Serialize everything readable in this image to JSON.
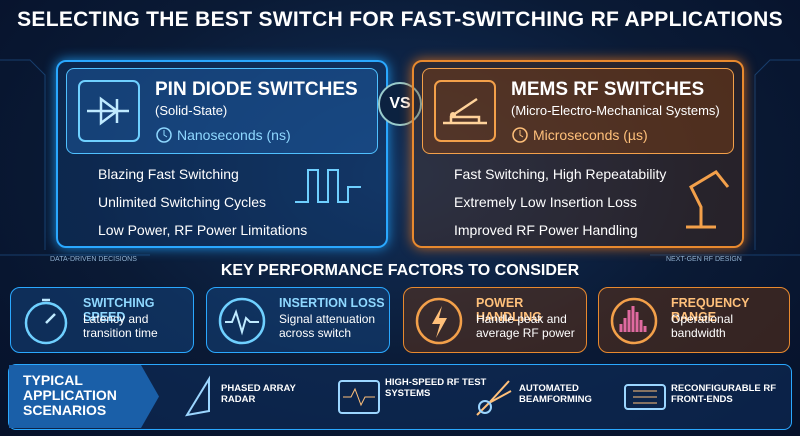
{
  "header": {
    "title": "SELECTING THE BEST SWITCH FOR FAST-SWITCHING RF APPLICATIONS"
  },
  "comparison": {
    "left": {
      "title": "PIN DIODE SWITCHES",
      "subtitle": "(Solid-State)",
      "speed": "Nanoseconds (ns)",
      "features": [
        "Blazing Fast Switching",
        "Unlimited Switching Cycles",
        "Low Power, RF Power Limitations"
      ]
    },
    "vs": "VS",
    "right": {
      "title": "MEMS RF SWITCHES",
      "subtitle": "(Micro-Electro-Mechanical Systems)",
      "speed": "Microseconds (µs)",
      "features": [
        "Fast Switching, High Repeatability",
        "Extremely Low Insertion Loss",
        "Improved RF Power Handling"
      ]
    }
  },
  "side_labels": [
    "DATA-DRIVEN DECISIONS",
    "NEXT-GEN RF DESIGN"
  ],
  "factors": {
    "heading": "KEY PERFORMANCE FACTORS TO CONSIDER",
    "items": [
      {
        "title": "SWITCHING SPEED",
        "description": "Latency and transition time"
      },
      {
        "title": "INSERTION LOSS",
        "description": "Signal attenuation across switch"
      },
      {
        "title": "POWER HANDLING",
        "description": "Handle peak and average RF power"
      },
      {
        "title": "FREQUENCY RANGE",
        "description": "Operational bandwidth"
      }
    ]
  },
  "applications": {
    "heading": "TYPICAL APPLICATION SCENARIOS",
    "items": [
      "PHASED ARRAY RADAR",
      "HIGH-SPEED RF TEST SYSTEMS",
      "AUTOMATED BEAMFORMING",
      "RECONFIGURABLE RF FRONT-ENDS"
    ]
  }
}
